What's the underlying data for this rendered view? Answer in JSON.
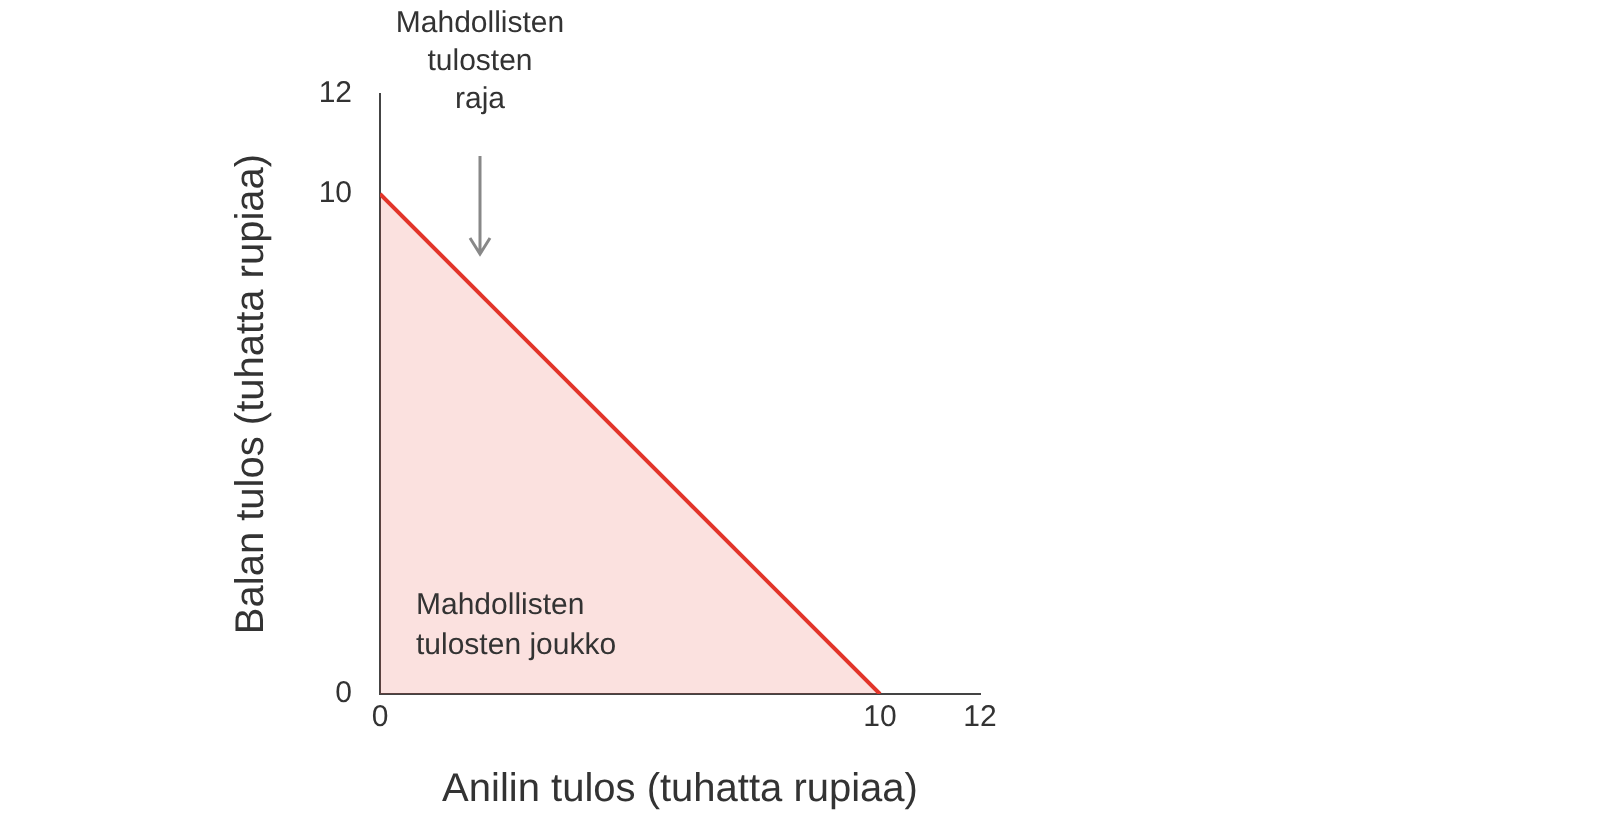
{
  "chart_data": {
    "type": "area",
    "xlabel": "Anilin tulos (tuhatta rupiaa)",
    "ylabel": "Balan tulos (tuhatta rupiaa)",
    "x": [
      0,
      10
    ],
    "series": [
      {
        "color": "#e2352a",
        "values": [
          10,
          0
        ]
      }
    ],
    "xlim": [
      0,
      12
    ],
    "xticks": [
      0,
      10,
      12
    ],
    "ylim": [
      0,
      12
    ],
    "yticks": [
      0,
      10,
      12
    ],
    "grid": false,
    "legend": false,
    "marker": "none",
    "line_style": "solid",
    "annotations": [
      "Mahdollisten\ntulosten\nraja",
      "Mahdollisten\ntulosten joukko"
    ]
  }
}
